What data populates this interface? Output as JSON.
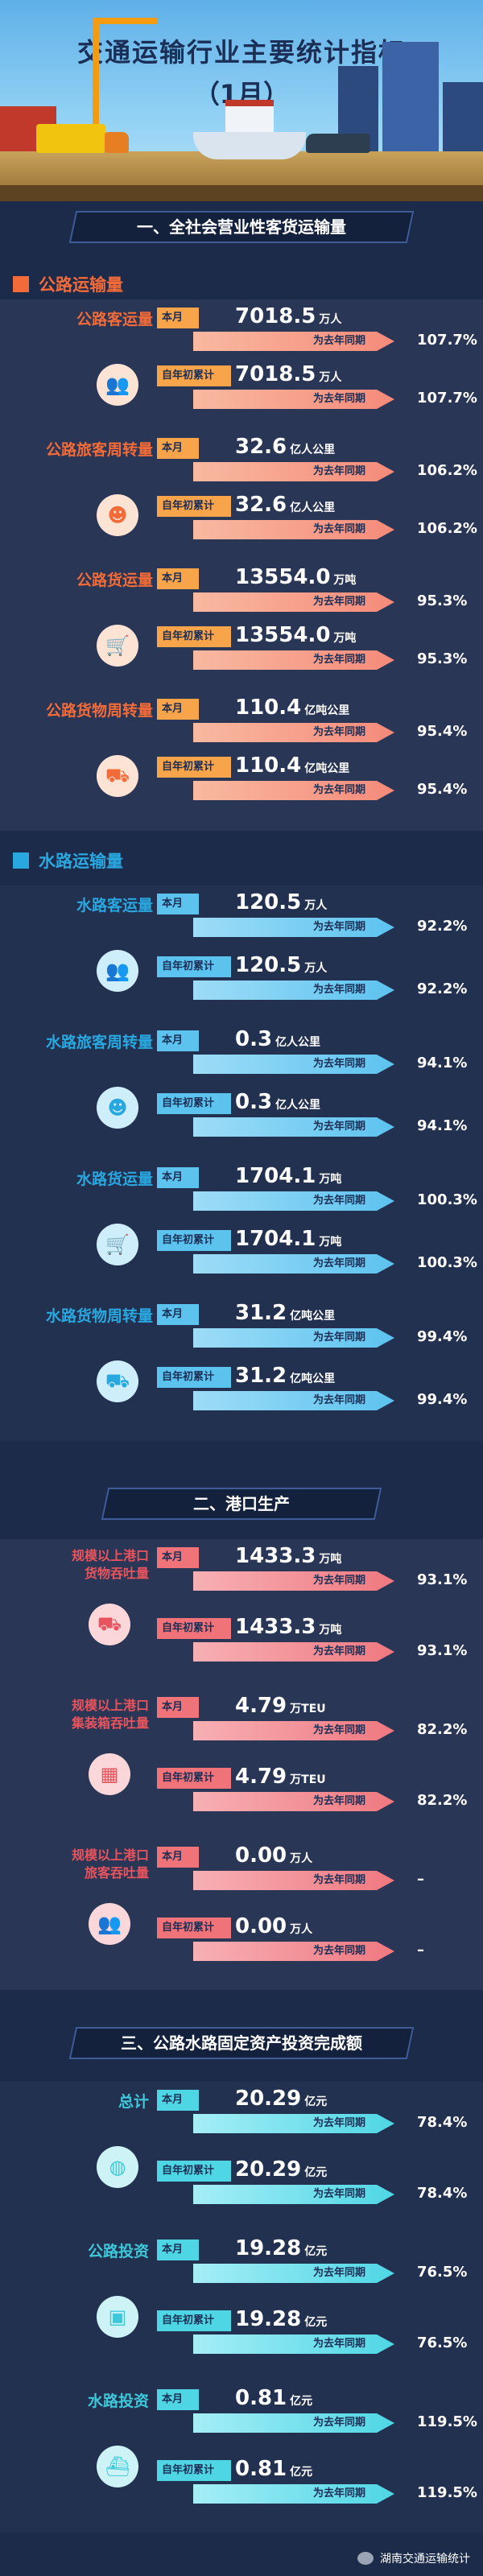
{
  "header": {
    "title": "交通运输行业主要统计指标",
    "subtitle": "（1月）"
  },
  "colors": {
    "road": "#f26b38",
    "water": "#29a8e0",
    "port": "#e8545d",
    "invest": "#3ec8d9",
    "bg": "#1d2b4a"
  },
  "section1": {
    "title": "一、全社会营业性客货运输量"
  },
  "road": {
    "heading": "公路运输量",
    "items": [
      {
        "label": "公路客运量",
        "icon": "people-icon",
        "month_tag": "本月",
        "month_value": "7018.5",
        "month_unit": "万人",
        "month_cmp": "为去年同期",
        "month_pct": "107.7%",
        "ytd_tag": "自年初累计",
        "ytd_value": "7018.5",
        "ytd_unit": "万人",
        "ytd_cmp": "为去年同期",
        "ytd_pct": "107.7%"
      },
      {
        "label": "公路旅客周转量",
        "icon": "person-circle-icon",
        "month_tag": "本月",
        "month_value": "32.6",
        "month_unit": "亿人公里",
        "month_cmp": "为去年同期",
        "month_pct": "106.2%",
        "ytd_tag": "自年初累计",
        "ytd_value": "32.6",
        "ytd_unit": "亿人公里",
        "ytd_cmp": "为去年同期",
        "ytd_pct": "106.2%"
      },
      {
        "label": "公路货运量",
        "icon": "cart-icon",
        "month_tag": "本月",
        "month_value": "13554.0",
        "month_unit": "万吨",
        "month_cmp": "为去年同期",
        "month_pct": "95.3%",
        "ytd_tag": "自年初累计",
        "ytd_value": "13554.0",
        "ytd_unit": "万吨",
        "ytd_cmp": "为去年同期",
        "ytd_pct": "95.3%"
      },
      {
        "label": "公路货物周转量",
        "icon": "cart-circle-icon",
        "month_tag": "本月",
        "month_value": "110.4",
        "month_unit": "亿吨公里",
        "month_cmp": "为去年同期",
        "month_pct": "95.4%",
        "ytd_tag": "自年初累计",
        "ytd_value": "110.4",
        "ytd_unit": "亿吨公里",
        "ytd_cmp": "为去年同期",
        "ytd_pct": "95.4%"
      }
    ]
  },
  "water": {
    "heading": "水路运输量",
    "items": [
      {
        "label": "水路客运量",
        "icon": "people-icon",
        "month_tag": "本月",
        "month_value": "120.5",
        "month_unit": "万人",
        "month_cmp": "为去年同期",
        "month_pct": "92.2%",
        "ytd_tag": "自年初累计",
        "ytd_value": "120.5",
        "ytd_unit": "万人",
        "ytd_cmp": "为去年同期",
        "ytd_pct": "92.2%"
      },
      {
        "label": "水路旅客周转量",
        "icon": "person-circle-icon",
        "month_tag": "本月",
        "month_value": "0.3",
        "month_unit": "亿人公里",
        "month_cmp": "为去年同期",
        "month_pct": "94.1%",
        "ytd_tag": "自年初累计",
        "ytd_value": "0.3",
        "ytd_unit": "亿人公里",
        "ytd_cmp": "为去年同期",
        "ytd_pct": "94.1%"
      },
      {
        "label": "水路货运量",
        "icon": "cart-icon",
        "month_tag": "本月",
        "month_value": "1704.1",
        "month_unit": "万吨",
        "month_cmp": "为去年同期",
        "month_pct": "100.3%",
        "ytd_tag": "自年初累计",
        "ytd_value": "1704.1",
        "ytd_unit": "万吨",
        "ytd_cmp": "为去年同期",
        "ytd_pct": "100.3%"
      },
      {
        "label": "水路货物周转量",
        "icon": "cart-circle-icon",
        "month_tag": "本月",
        "month_value": "31.2",
        "month_unit": "亿吨公里",
        "month_cmp": "为去年同期",
        "month_pct": "99.4%",
        "ytd_tag": "自年初累计",
        "ytd_value": "31.2",
        "ytd_unit": "亿吨公里",
        "ytd_cmp": "为去年同期",
        "ytd_pct": "99.4%"
      }
    ]
  },
  "section2": {
    "title": "二、港口生产"
  },
  "port": {
    "items": [
      {
        "label_l1": "规模以上港口",
        "label_l2": "货物吞吐量",
        "icon": "cargo-cart-icon",
        "month_tag": "本月",
        "month_value": "1433.3",
        "month_unit": "万吨",
        "month_cmp": "为去年同期",
        "month_pct": "93.1%",
        "ytd_tag": "自年初累计",
        "ytd_value": "1433.3",
        "ytd_unit": "万吨",
        "ytd_cmp": "为去年同期",
        "ytd_pct": "93.1%"
      },
      {
        "label_l1": "规模以上港口",
        "label_l2": "集装箱吞吐量",
        "icon": "container-icon",
        "month_tag": "本月",
        "month_value": "4.79",
        "month_unit": "万TEU",
        "month_cmp": "为去年同期",
        "month_pct": "82.2%",
        "ytd_tag": "自年初累计",
        "ytd_value": "4.79",
        "ytd_unit": "万TEU",
        "ytd_cmp": "为去年同期",
        "ytd_pct": "82.2%"
      },
      {
        "label_l1": "规模以上港口",
        "label_l2": "旅客吞吐量",
        "icon": "people-icon",
        "month_tag": "本月",
        "month_value": "0.00",
        "month_unit": "万人",
        "month_cmp": "为去年同期",
        "month_pct": "–",
        "ytd_tag": "自年初累计",
        "ytd_value": "0.00",
        "ytd_unit": "万人",
        "ytd_cmp": "为去年同期",
        "ytd_pct": "–"
      }
    ]
  },
  "section3": {
    "title": "三、公路水路固定资产投资完成额"
  },
  "invest": {
    "items": [
      {
        "label": "总计",
        "icon": "globe-icon",
        "month_tag": "本月",
        "month_value": "20.29",
        "month_unit": "亿元",
        "month_cmp": "为去年同期",
        "month_pct": "78.4%",
        "ytd_tag": "自年初累计",
        "ytd_value": "20.29",
        "ytd_unit": "亿元",
        "ytd_cmp": "为去年同期",
        "ytd_pct": "78.4%"
      },
      {
        "label": "公路投资",
        "icon": "bus-icon",
        "month_tag": "本月",
        "month_value": "19.28",
        "month_unit": "亿元",
        "month_cmp": "为去年同期",
        "month_pct": "76.5%",
        "ytd_tag": "自年初累计",
        "ytd_value": "19.28",
        "ytd_unit": "亿元",
        "ytd_cmp": "为去年同期",
        "ytd_pct": "76.5%"
      },
      {
        "label": "水路投资",
        "icon": "ship-icon",
        "month_tag": "本月",
        "month_value": "0.81",
        "month_unit": "亿元",
        "month_cmp": "为去年同期",
        "month_pct": "119.5%",
        "ytd_tag": "自年初累计",
        "ytd_value": "0.81",
        "ytd_unit": "亿元",
        "ytd_cmp": "为去年同期",
        "ytd_pct": "119.5%"
      }
    ]
  },
  "footer": {
    "account": "湖南交通运输统计"
  }
}
